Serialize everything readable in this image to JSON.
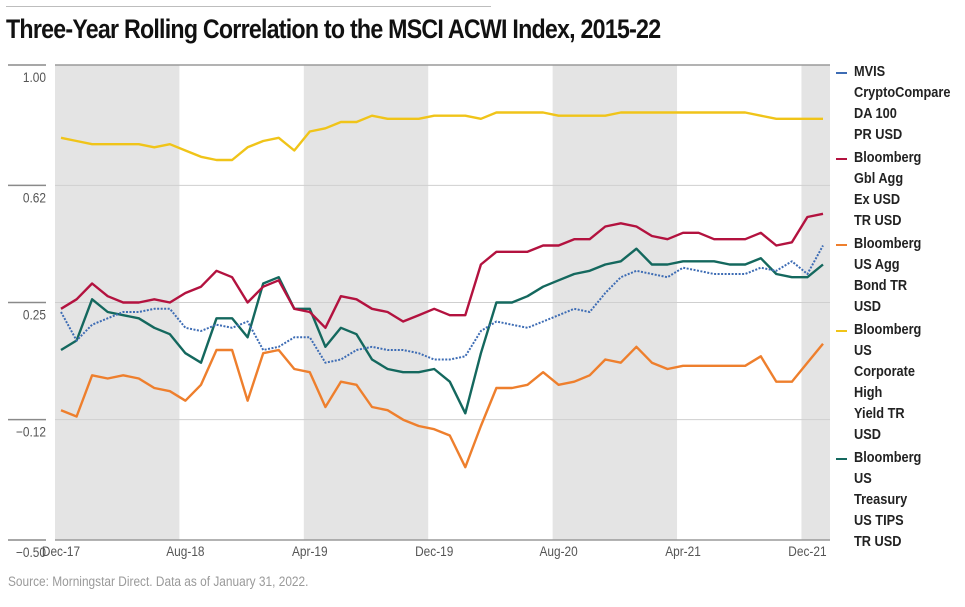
{
  "chart_data": {
    "type": "line",
    "title": "Three-Year Rolling Correlation to the MSCI ACWI Index, 2015-22",
    "xlabel": "",
    "ylabel": "",
    "ylim": [
      -0.5,
      1.0
    ],
    "yticks": [
      "1.00",
      "0.62",
      "0.25",
      "-0.12",
      "-0.50"
    ],
    "ytick_values": [
      1.0,
      0.62,
      0.25,
      -0.12,
      -0.5
    ],
    "xtick_labels": [
      "Dec-17",
      "Aug-18",
      "Apr-19",
      "Dec-19",
      "Aug-20",
      "Apr-21",
      "Dec-21"
    ],
    "xtick_indices": [
      0,
      8,
      16,
      24,
      32,
      40,
      48
    ],
    "shaded_band_months": 8,
    "grid": true,
    "legend_position": "right",
    "x": [
      "Dec-17",
      "Jan-18",
      "Feb-18",
      "Mar-18",
      "Apr-18",
      "May-18",
      "Jun-18",
      "Jul-18",
      "Aug-18",
      "Sep-18",
      "Oct-18",
      "Nov-18",
      "Dec-18",
      "Jan-19",
      "Feb-19",
      "Mar-19",
      "Apr-19",
      "May-19",
      "Jun-19",
      "Jul-19",
      "Aug-19",
      "Sep-19",
      "Oct-19",
      "Nov-19",
      "Dec-19",
      "Jan-20",
      "Feb-20",
      "Mar-20",
      "Apr-20",
      "May-20",
      "Jun-20",
      "Jul-20",
      "Aug-20",
      "Sep-20",
      "Oct-20",
      "Nov-20",
      "Dec-20",
      "Jan-21",
      "Feb-21",
      "Mar-21",
      "Apr-21",
      "May-21",
      "Jun-21",
      "Jul-21",
      "Aug-21",
      "Sep-21",
      "Oct-21",
      "Nov-21",
      "Dec-21",
      "Jan-22"
    ],
    "series": [
      {
        "name": "MVIS CryptoCompare DA 100 PR USD",
        "color": "#3d6cb4",
        "style": "dotted",
        "values": [
          0.22,
          0.13,
          0.18,
          0.2,
          0.22,
          0.22,
          0.23,
          0.23,
          0.17,
          0.16,
          0.18,
          0.17,
          0.19,
          0.1,
          0.11,
          0.14,
          0.14,
          0.06,
          0.07,
          0.1,
          0.11,
          0.1,
          0.1,
          0.09,
          0.07,
          0.07,
          0.08,
          0.16,
          0.19,
          0.18,
          0.17,
          0.19,
          0.21,
          0.23,
          0.22,
          0.28,
          0.33,
          0.35,
          0.34,
          0.33,
          0.36,
          0.35,
          0.34,
          0.34,
          0.34,
          0.36,
          0.35,
          0.38,
          0.34,
          0.43
        ]
      },
      {
        "name": "Bloomberg Gbl Agg Ex USD TR USD",
        "color": "#b3123f",
        "style": "solid",
        "values": [
          0.23,
          0.26,
          0.31,
          0.27,
          0.25,
          0.25,
          0.26,
          0.25,
          0.28,
          0.3,
          0.35,
          0.33,
          0.25,
          0.3,
          0.32,
          0.23,
          0.22,
          0.17,
          0.27,
          0.26,
          0.23,
          0.22,
          0.19,
          0.21,
          0.23,
          0.21,
          0.21,
          0.37,
          0.41,
          0.41,
          0.41,
          0.43,
          0.43,
          0.45,
          0.45,
          0.49,
          0.5,
          0.49,
          0.46,
          0.45,
          0.47,
          0.47,
          0.45,
          0.45,
          0.45,
          0.47,
          0.43,
          0.44,
          0.52,
          0.53
        ]
      },
      {
        "name": "Bloomberg US Agg Bond TR USD",
        "color": "#ee7f2d",
        "style": "solid",
        "values": [
          -0.09,
          -0.11,
          0.02,
          0.01,
          0.02,
          0.01,
          -0.02,
          -0.03,
          -0.06,
          -0.01,
          0.1,
          0.1,
          -0.06,
          0.09,
          0.1,
          0.04,
          0.03,
          -0.08,
          0.0,
          -0.01,
          -0.08,
          -0.09,
          -0.12,
          -0.14,
          -0.15,
          -0.17,
          -0.27,
          -0.14,
          -0.02,
          -0.02,
          -0.01,
          0.03,
          -0.01,
          0.0,
          0.02,
          0.07,
          0.06,
          0.11,
          0.06,
          0.04,
          0.05,
          0.05,
          0.05,
          0.05,
          0.05,
          0.08,
          0.0,
          0.0,
          0.06,
          0.12
        ]
      },
      {
        "name": "Bloomberg US Corporate High Yield TR USD",
        "color": "#f0c419",
        "style": "solid",
        "values": [
          0.77,
          0.76,
          0.75,
          0.75,
          0.75,
          0.75,
          0.74,
          0.75,
          0.73,
          0.71,
          0.7,
          0.7,
          0.74,
          0.76,
          0.77,
          0.73,
          0.79,
          0.8,
          0.82,
          0.82,
          0.84,
          0.83,
          0.83,
          0.83,
          0.84,
          0.84,
          0.84,
          0.83,
          0.85,
          0.85,
          0.85,
          0.85,
          0.84,
          0.84,
          0.84,
          0.84,
          0.85,
          0.85,
          0.85,
          0.85,
          0.85,
          0.85,
          0.85,
          0.85,
          0.85,
          0.84,
          0.83,
          0.83,
          0.83,
          0.83
        ]
      },
      {
        "name": "Bloomberg US Treasury US TIPS TR USD",
        "color": "#14685e",
        "style": "solid",
        "values": [
          0.1,
          0.13,
          0.26,
          0.22,
          0.21,
          0.2,
          0.17,
          0.15,
          0.09,
          0.06,
          0.2,
          0.2,
          0.14,
          0.31,
          0.33,
          0.23,
          0.23,
          0.11,
          0.17,
          0.15,
          0.07,
          0.04,
          0.03,
          0.03,
          0.04,
          0.0,
          -0.1,
          0.09,
          0.25,
          0.25,
          0.27,
          0.3,
          0.32,
          0.34,
          0.35,
          0.37,
          0.38,
          0.42,
          0.37,
          0.37,
          0.38,
          0.38,
          0.38,
          0.37,
          0.37,
          0.39,
          0.34,
          0.33,
          0.33,
          0.37
        ]
      }
    ]
  },
  "legend": [
    {
      "label": "MVIS\nCryptoCompare\nDA 100\nPR USD",
      "color": "#3d6cb4"
    },
    {
      "label": "Bloomberg\nGbl Agg\nEx USD\nTR USD",
      "color": "#b3123f"
    },
    {
      "label": "Bloomberg\nUS Agg\nBond TR\nUSD",
      "color": "#ee7f2d"
    },
    {
      "label": "Bloomberg\nUS\nCorporate\nHigh\nYield TR\nUSD",
      "color": "#f0c419"
    },
    {
      "label": "Bloomberg\nUS\nTreasury\nUS TIPS\nTR USD",
      "color": "#14685e"
    }
  ],
  "source": "Source: Morningstar Direct. Data as of January 31, 2022."
}
